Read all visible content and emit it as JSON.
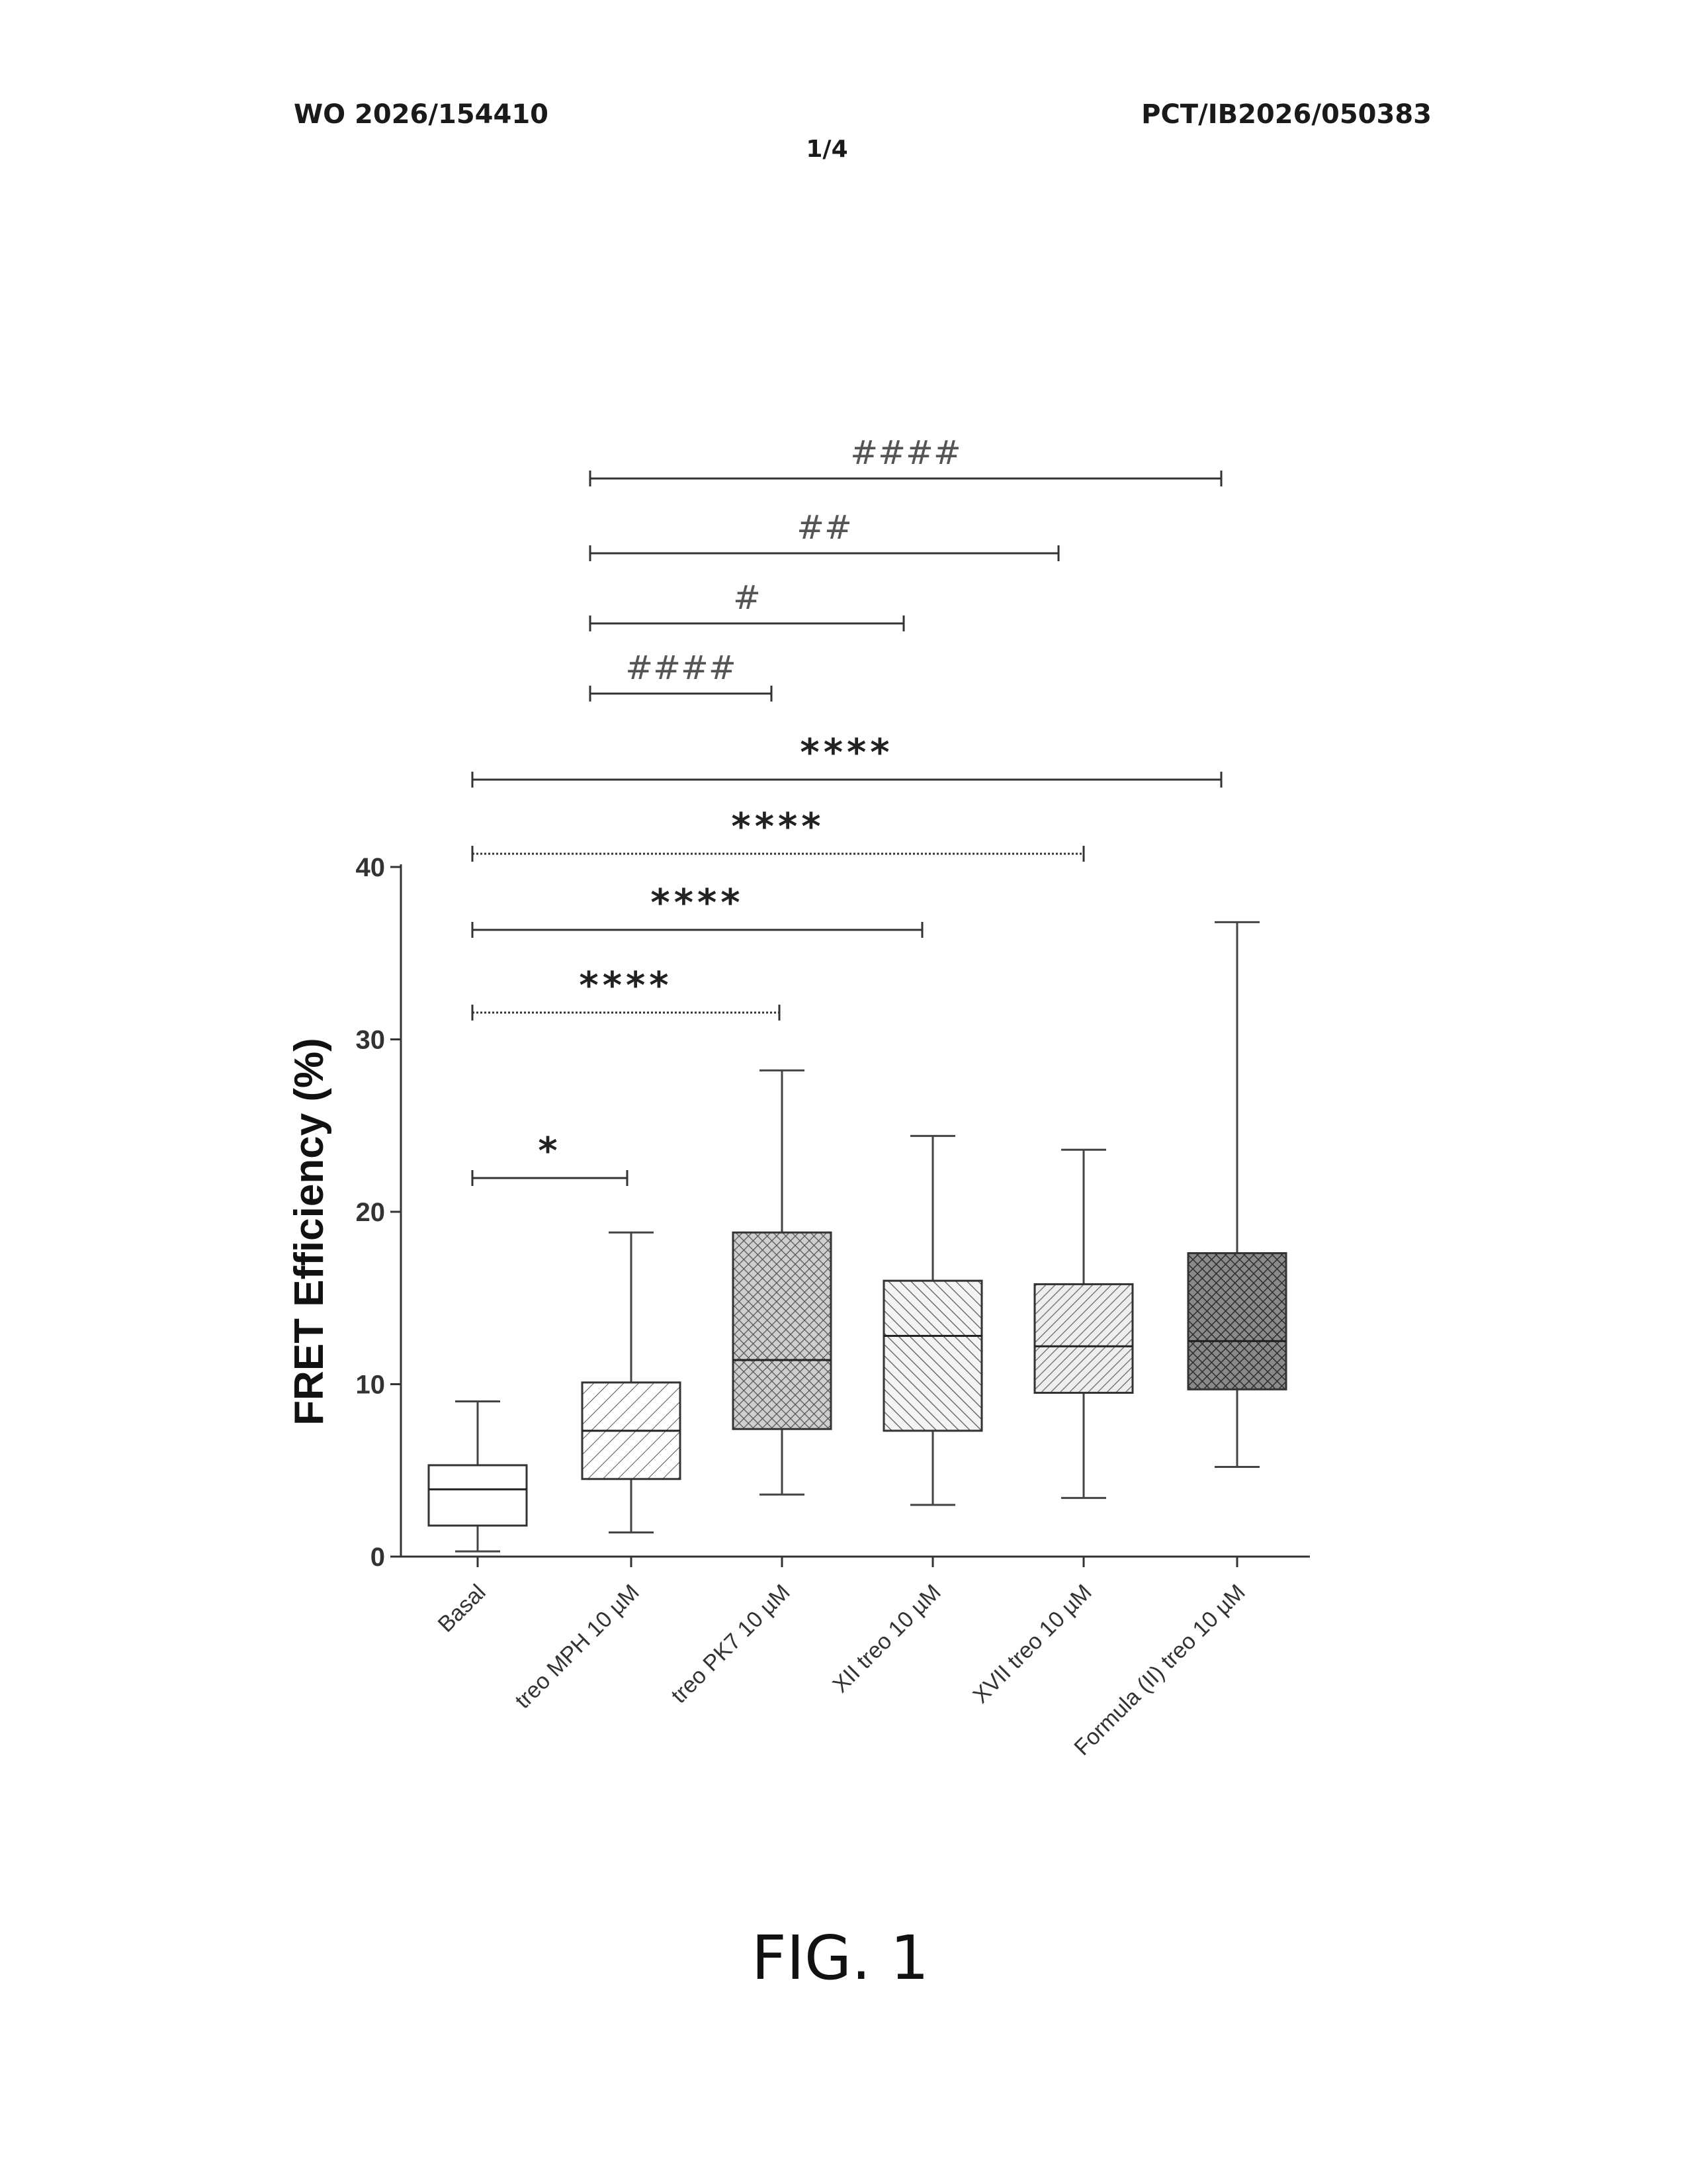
{
  "header": {
    "publication_number": "WO 2026/154410",
    "application_number": "PCT/IB2026/050383",
    "page_number": "1/4"
  },
  "figure": {
    "caption": "FIG. 1"
  },
  "chart_data": {
    "type": "box",
    "ylabel": "FRET Efficiency (%)",
    "xlabel": "",
    "title": "",
    "ylim": [
      0,
      40
    ],
    "yticks": [
      0,
      10,
      20,
      30,
      40
    ],
    "categories": [
      "Basal",
      "treo MPH 10 µM",
      "treo  PK7 10 µM",
      "XII treo   10 µM",
      "XVII treo      10 µM",
      "Formula (II) treo 10 µM"
    ],
    "boxes": [
      {
        "category": "Basal",
        "min": 0.3,
        "q1": 1.8,
        "median": 3.9,
        "q3": 5.3,
        "max": 9.0,
        "fill": "open"
      },
      {
        "category": "treo MPH 10 µM",
        "min": 1.4,
        "q1": 4.5,
        "median": 7.3,
        "q3": 10.1,
        "max": 18.8,
        "fill": "diagonal-back"
      },
      {
        "category": "treo  PK7 10 µM",
        "min": 3.6,
        "q1": 7.4,
        "median": 11.4,
        "q3": 18.8,
        "max": 28.2,
        "fill": "crosshatch-dense"
      },
      {
        "category": "XII treo   10 µM",
        "min": 3.0,
        "q1": 7.3,
        "median": 12.8,
        "q3": 16.0,
        "max": 24.4,
        "fill": "diagonal-fwd"
      },
      {
        "category": "XVII treo      10 µM",
        "min": 3.4,
        "q1": 9.5,
        "median": 12.2,
        "q3": 15.8,
        "max": 23.6,
        "fill": "diagonal-back-dense"
      },
      {
        "category": "Formula (II) treo 10 µM",
        "min": 5.2,
        "q1": 9.7,
        "median": 12.5,
        "q3": 17.6,
        "max": 36.8,
        "fill": "crosshatch-dark"
      }
    ],
    "significance": [
      {
        "from": 0,
        "to": 1,
        "label": "*",
        "style": "solid"
      },
      {
        "from": 0,
        "to": 2,
        "label": "****",
        "style": "dotted"
      },
      {
        "from": 0,
        "to": 3,
        "label": "****",
        "style": "solid"
      },
      {
        "from": 0,
        "to": 4,
        "label": "****",
        "style": "dotted"
      },
      {
        "from": 0,
        "to": 5,
        "label": "****",
        "style": "solid"
      },
      {
        "from": 1,
        "to": 2,
        "label": "####",
        "style": "solid"
      },
      {
        "from": 1,
        "to": 3,
        "label": "#",
        "style": "solid"
      },
      {
        "from": 1,
        "to": 4,
        "label": "##",
        "style": "solid"
      },
      {
        "from": 1,
        "to": 5,
        "label": "####",
        "style": "solid"
      }
    ]
  }
}
